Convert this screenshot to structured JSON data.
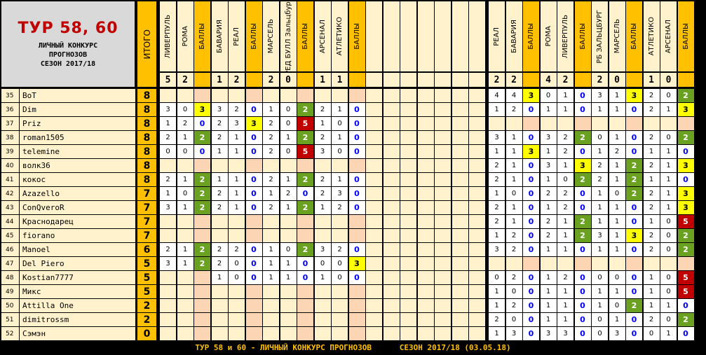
{
  "title": {
    "main": "ТУР 58, 60",
    "line1": "ЛИЧНЫЙ КОНКУРС",
    "line2": "ПРОГНОЗОВ",
    "line3": "СЕЗОН 2017/18"
  },
  "total_header": "ИТОГО",
  "left_headers": [
    "ЛИВЕРПУЛЬ",
    "РОМА",
    "БАЛЛЫ",
    "БАВАРИЯ",
    "РЕАЛ",
    "БАЛЛЫ",
    "МАРСЕЛЬ",
    "РЕД БУЛЛ Зальцбург",
    "БАЛЛЫ",
    "АРСЕНАЛ",
    "АТЛЕТИКО",
    "БАЛЛЫ"
  ],
  "right_headers": [
    "РЕАЛ",
    "БАВАРИЯ",
    "БАЛЛЫ",
    "РОМА",
    "ЛИВЕРПУЛЬ",
    "БАЛЛЫ",
    "РБ ЗАЛЬЦБУРГ",
    "МАРСЕЛЬ",
    "БАЛЛЫ",
    "АТЛЕТИКО",
    "АРСЕНАЛ",
    "БАЛЛЫ"
  ],
  "left_results": [
    "5",
    "2",
    "",
    "1",
    "2",
    "",
    "2",
    "0",
    "",
    "1",
    "1",
    ""
  ],
  "right_results": [
    "2",
    "2",
    "",
    "4",
    "2",
    "",
    "2",
    "0",
    "",
    "1",
    "0",
    ""
  ],
  "colors": {
    "green": "#6aa121",
    "yellow": "#ffff00",
    "red": "#c00000",
    "blue": "#0000ff",
    "cream": "#fff2cc",
    "orange": "#f4b183",
    "lightorange": "#fcd5b4",
    "gold": "#ffc000"
  },
  "rows": [
    {
      "n": "35",
      "name": "BoT",
      "total": "8",
      "L": [
        "",
        "",
        "",
        "",
        "",
        "",
        "",
        "",
        "",
        "",
        "",
        ""
      ],
      "R": [
        "4",
        "4",
        "3",
        "0",
        "1",
        "0",
        "3",
        "1",
        "3",
        "2",
        "0",
        "2"
      ]
    },
    {
      "n": "36",
      "name": "Dim",
      "total": "8",
      "L": [
        "3",
        "0",
        "3",
        "3",
        "2",
        "0",
        "1",
        "0",
        "2",
        "2",
        "1",
        "0"
      ],
      "R": [
        "1",
        "2",
        "0",
        "1",
        "1",
        "0",
        "1",
        "1",
        "0",
        "2",
        "1",
        "3"
      ]
    },
    {
      "n": "37",
      "name": "Priz",
      "total": "8",
      "L": [
        "1",
        "2",
        "0",
        "2",
        "3",
        "3",
        "2",
        "0",
        "5",
        "1",
        "0",
        "0"
      ],
      "R": [
        "",
        "",
        "",
        "",
        "",
        "",
        "",
        "",
        "",
        "",
        "",
        ""
      ]
    },
    {
      "n": "38",
      "name": "roman1505",
      "total": "8",
      "L": [
        "2",
        "1",
        "2",
        "2",
        "1",
        "0",
        "2",
        "1",
        "2",
        "2",
        "1",
        "0"
      ],
      "R": [
        "3",
        "1",
        "0",
        "3",
        "2",
        "2",
        "0",
        "1",
        "0",
        "2",
        "0",
        "2"
      ]
    },
    {
      "n": "39",
      "name": "telemine",
      "total": "8",
      "L": [
        "0",
        "0",
        "0",
        "1",
        "1",
        "0",
        "2",
        "0",
        "5",
        "3",
        "0",
        "0"
      ],
      "R": [
        "1",
        "1",
        "3",
        "1",
        "2",
        "0",
        "1",
        "2",
        "0",
        "1",
        "1",
        "0"
      ]
    },
    {
      "n": "40",
      "name": "волк36",
      "total": "8",
      "L": [
        "",
        "",
        "",
        "",
        "",
        "",
        "",
        "",
        "",
        "",
        "",
        ""
      ],
      "R": [
        "2",
        "1",
        "0",
        "3",
        "1",
        "3",
        "2",
        "1",
        "2",
        "2",
        "1",
        "3"
      ]
    },
    {
      "n": "41",
      "name": "кокос",
      "total": "8",
      "L": [
        "2",
        "1",
        "2",
        "1",
        "1",
        "0",
        "2",
        "1",
        "2",
        "2",
        "1",
        "0"
      ],
      "R": [
        "2",
        "1",
        "0",
        "1",
        "0",
        "2",
        "2",
        "1",
        "2",
        "1",
        "1",
        "0"
      ]
    },
    {
      "n": "42",
      "name": "Azazello",
      "total": "7",
      "L": [
        "1",
        "0",
        "2",
        "2",
        "1",
        "0",
        "1",
        "2",
        "0",
        "2",
        "3",
        "0"
      ],
      "R": [
        "1",
        "0",
        "0",
        "2",
        "2",
        "0",
        "1",
        "0",
        "2",
        "2",
        "1",
        "3"
      ]
    },
    {
      "n": "43",
      "name": "ConQveroR",
      "total": "7",
      "L": [
        "3",
        "1",
        "2",
        "2",
        "1",
        "0",
        "2",
        "1",
        "2",
        "1",
        "2",
        "0"
      ],
      "R": [
        "2",
        "1",
        "0",
        "1",
        "2",
        "0",
        "1",
        "1",
        "0",
        "2",
        "1",
        "3"
      ]
    },
    {
      "n": "44",
      "name": "Краснодарец",
      "total": "7",
      "L": [
        "",
        "",
        "",
        "",
        "",
        "",
        "",
        "",
        "",
        "",
        "",
        ""
      ],
      "R": [
        "2",
        "1",
        "0",
        "2",
        "1",
        "2",
        "1",
        "1",
        "0",
        "1",
        "0",
        "5"
      ]
    },
    {
      "n": "45",
      "name": "fiorano",
      "total": "7",
      "L": [
        "",
        "",
        "",
        "",
        "",
        "",
        "",
        "",
        "",
        "",
        "",
        ""
      ],
      "R": [
        "1",
        "2",
        "0",
        "2",
        "1",
        "2",
        "3",
        "1",
        "3",
        "2",
        "0",
        "2"
      ]
    },
    {
      "n": "46",
      "name": "Manoel",
      "total": "6",
      "L": [
        "2",
        "1",
        "2",
        "2",
        "2",
        "0",
        "1",
        "0",
        "2",
        "3",
        "2",
        "0"
      ],
      "R": [
        "3",
        "2",
        "0",
        "1",
        "1",
        "0",
        "1",
        "1",
        "0",
        "2",
        "0",
        "2"
      ]
    },
    {
      "n": "47",
      "name": "Del Piero",
      "total": "5",
      "L": [
        "3",
        "1",
        "2",
        "2",
        "0",
        "0",
        "1",
        "1",
        "0",
        "0",
        "0",
        "3"
      ],
      "R": [
        "",
        "",
        "",
        "",
        "",
        "",
        "",
        "",
        "",
        "",
        "",
        ""
      ]
    },
    {
      "n": "48",
      "name": "Kostian7777",
      "total": "5",
      "L": [
        "",
        "",
        "",
        "1",
        "0",
        "0",
        "1",
        "1",
        "0",
        "1",
        "0",
        "0"
      ],
      "R": [
        "0",
        "2",
        "0",
        "1",
        "2",
        "0",
        "0",
        "0",
        "0",
        "1",
        "0",
        "5"
      ]
    },
    {
      "n": "49",
      "name": "Микс",
      "total": "5",
      "L": [
        "",
        "",
        "",
        "",
        "",
        "",
        "",
        "",
        "",
        "",
        "",
        ""
      ],
      "R": [
        "1",
        "0",
        "0",
        "1",
        "1",
        "0",
        "1",
        "1",
        "0",
        "1",
        "0",
        "5"
      ]
    },
    {
      "n": "50",
      "name": "Attilla One",
      "total": "2",
      "L": [
        "",
        "",
        "",
        "",
        "",
        "",
        "",
        "",
        "",
        "",
        "",
        ""
      ],
      "R": [
        "1",
        "2",
        "0",
        "1",
        "1",
        "0",
        "1",
        "0",
        "2",
        "1",
        "1",
        "0"
      ]
    },
    {
      "n": "51",
      "name": "dimitrossm",
      "total": "2",
      "L": [
        "",
        "",
        "",
        "",
        "",
        "",
        "",
        "",
        "",
        "",
        "",
        ""
      ],
      "R": [
        "2",
        "0",
        "0",
        "1",
        "1",
        "0",
        "0",
        "1",
        "0",
        "2",
        "0",
        "2"
      ]
    },
    {
      "n": "52",
      "name": "Сэмэн",
      "total": "0",
      "L": [
        "",
        "",
        "",
        "",
        "",
        "",
        "",
        "",
        "",
        "",
        "",
        ""
      ],
      "R": [
        "1",
        "3",
        "0",
        "3",
        "3",
        "0",
        "0",
        "3",
        "0",
        "0",
        "1",
        "0"
      ]
    }
  ],
  "footer": {
    "text": "ТУР 58 и 60 - ЛИЧНЫЙ КОНКУРС ПРОГНОЗОВ      СЕЗОН 2017/18 (03.05.18)"
  }
}
